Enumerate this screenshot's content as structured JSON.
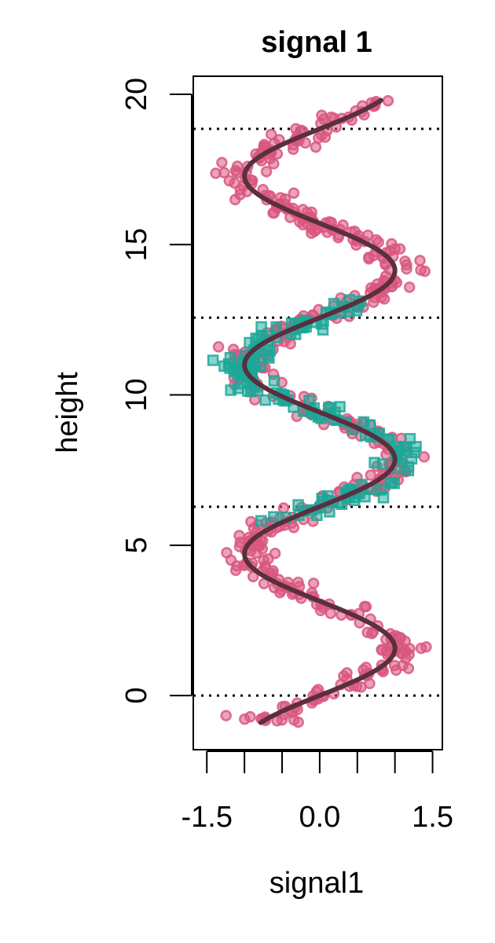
{
  "chart_data": {
    "type": "scatter",
    "title": "signal 1",
    "xlabel": "signal1",
    "ylabel": "height",
    "xlim": [
      -1.68,
      1.63
    ],
    "ylim": [
      -1.8,
      20.6
    ],
    "x_ticks": [
      -1.5,
      -1.0,
      -0.5,
      0.0,
      0.5,
      1.0,
      1.5
    ],
    "x_tick_labels": [
      "-1.5",
      "",
      "",
      "0.0",
      "",
      "",
      "1.5"
    ],
    "y_ticks": [
      0,
      5,
      10,
      15,
      20
    ],
    "y_tick_labels": [
      "0",
      "5",
      "10",
      "15",
      "20"
    ],
    "reference_lines": [
      0,
      6.28,
      12.57,
      18.85
    ],
    "grid": false,
    "legend": "none",
    "curve": {
      "y_range": [
        -0.9,
        19.8
      ],
      "description": "sin(height) trend",
      "amplitude": 1.0
    },
    "series": [
      {
        "marker": "circle",
        "color": "#d9577f",
        "y_range": [
          -0.9,
          19.8
        ],
        "noise": 0.18
      },
      {
        "marker": "square",
        "color": "#1aa898",
        "y_range": [
          5.8,
          13.2
        ],
        "noise": 0.18
      }
    ],
    "curve_color": "#5a2f3e"
  }
}
